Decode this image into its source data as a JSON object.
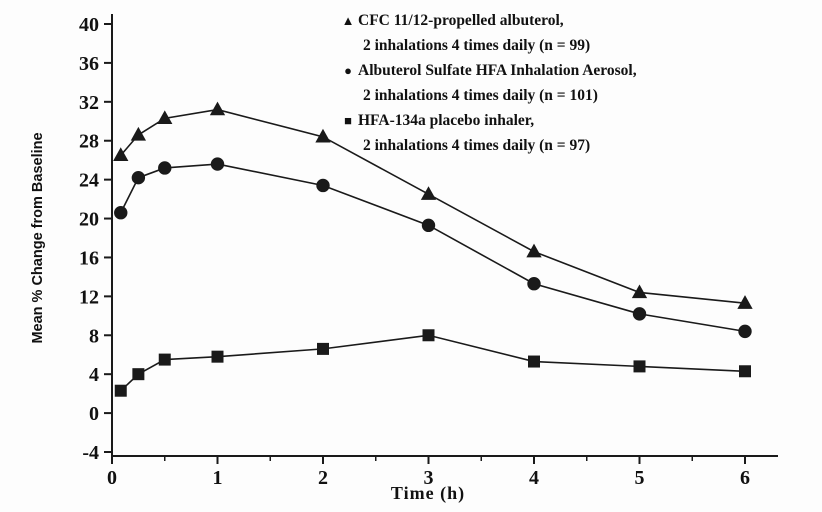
{
  "chart_data": {
    "type": "line",
    "title": "",
    "xlabel": "Time (h)",
    "ylabel": "Mean % Change from Baseline",
    "xlim": [
      0,
      6
    ],
    "ylim": [
      -4,
      40
    ],
    "x_ticks": [
      0,
      1,
      2,
      3,
      4,
      5,
      6
    ],
    "y_ticks": [
      -4,
      0,
      4,
      8,
      12,
      16,
      20,
      24,
      28,
      32,
      36,
      40
    ],
    "x_minor_tick_step": 0.5,
    "grid": false,
    "legend_position": "top-right-inside",
    "line_color": "#1a1a1a",
    "x": [
      0.083,
      0.25,
      0.5,
      1,
      2,
      3,
      4,
      5,
      6
    ],
    "series": [
      {
        "name": "CFC 11/12-propelled albuterol, 2 inhalations 4 times daily (n = 99)",
        "marker": "triangle",
        "values": [
          26.5,
          28.6,
          30.3,
          31.2,
          28.4,
          22.5,
          16.6,
          12.4,
          11.3
        ]
      },
      {
        "name": "Albuterol Sulfate HFA Inhalation Aerosol, 2 inhalations 4 times daily (n = 101)",
        "marker": "circle",
        "values": [
          20.6,
          24.2,
          25.2,
          25.6,
          23.4,
          19.3,
          13.3,
          10.2,
          8.4
        ]
      },
      {
        "name": "HFA-134a placebo inhaler, 2 inhalations 4 times daily (n = 97)",
        "marker": "square",
        "values": [
          2.3,
          4.0,
          5.5,
          5.8,
          6.6,
          8.0,
          5.3,
          4.8,
          4.3
        ]
      }
    ]
  },
  "legend": [
    {
      "glyph": "▲",
      "line1": "CFC 11/12-propelled albuterol,",
      "line2": "2 inhalations 4 times daily (n = 99)"
    },
    {
      "glyph": "●",
      "line1": "Albuterol Sulfate HFA Inhalation Aerosol,",
      "line2": "2 inhalations 4 times daily (n = 101)"
    },
    {
      "glyph": "■",
      "line1": "HFA-134a placebo inhaler,",
      "line2": "2 inhalations 4 times daily (n = 97)"
    }
  ],
  "axis_titles": {
    "x": "Time (h)",
    "y": "Mean % Change from Baseline"
  }
}
